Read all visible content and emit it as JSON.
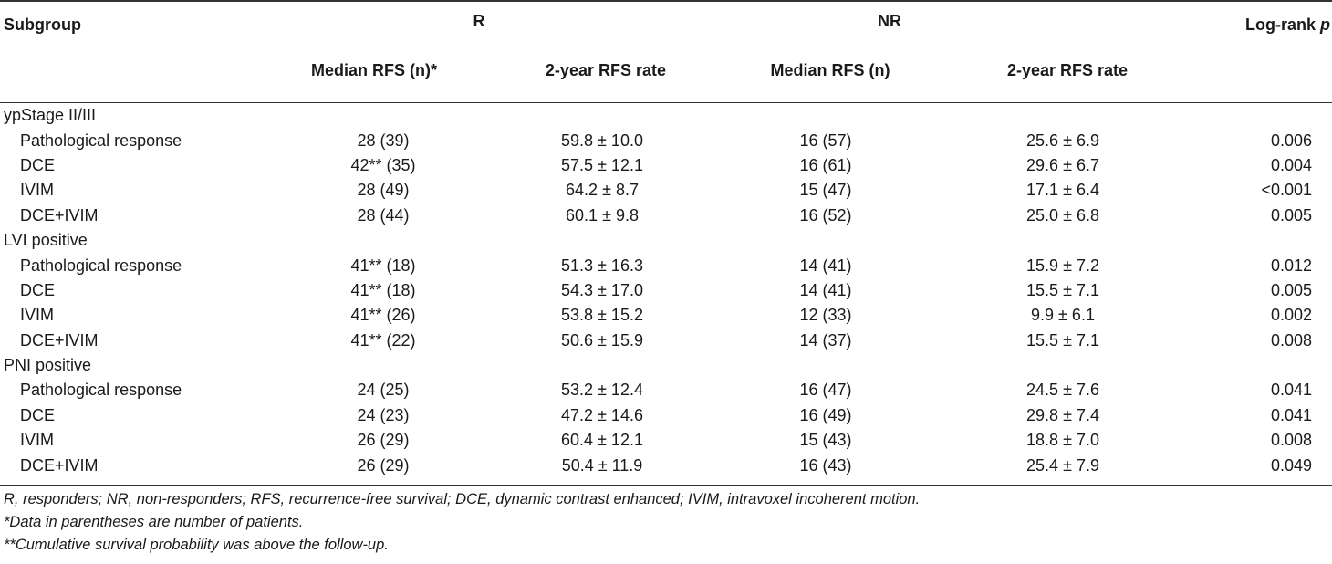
{
  "header": {
    "subgroup": "Subgroup",
    "r": "R",
    "nr": "NR",
    "logrank": "Log-rank ",
    "logrank_p": "p",
    "r_median": "Median RFS (n)*",
    "r_rate": "2-year RFS rate",
    "nr_median": "Median RFS (n)",
    "nr_rate": "2-year RFS rate"
  },
  "sections": [
    {
      "title": "ypStage II/III",
      "rows": [
        {
          "label": "Pathological response",
          "r_median": "28 (39)",
          "r_rate": "59.8 ± 10.0",
          "nr_median": "16 (57)",
          "nr_rate": "25.6 ± 6.9",
          "p": "0.006"
        },
        {
          "label": "DCE",
          "r_median": "42** (35)",
          "r_rate": "57.5 ± 12.1",
          "nr_median": "16 (61)",
          "nr_rate": "29.6 ± 6.7",
          "p": "0.004"
        },
        {
          "label": "IVIM",
          "r_median": "28 (49)",
          "r_rate": "64.2 ± 8.7",
          "nr_median": "15 (47)",
          "nr_rate": "17.1 ± 6.4",
          "p": "<0.001"
        },
        {
          "label": "DCE+IVIM",
          "r_median": "28 (44)",
          "r_rate": "60.1 ± 9.8",
          "nr_median": "16 (52)",
          "nr_rate": "25.0 ± 6.8",
          "p": "0.005"
        }
      ]
    },
    {
      "title": "LVI positive",
      "rows": [
        {
          "label": "Pathological response",
          "r_median": "41** (18)",
          "r_rate": "51.3 ± 16.3",
          "nr_median": "14 (41)",
          "nr_rate": "15.9 ± 7.2",
          "p": "0.012"
        },
        {
          "label": "DCE",
          "r_median": "41** (18)",
          "r_rate": "54.3 ± 17.0",
          "nr_median": "14 (41)",
          "nr_rate": "15.5 ± 7.1",
          "p": "0.005"
        },
        {
          "label": "IVIM",
          "r_median": "41** (26)",
          "r_rate": "53.8 ± 15.2",
          "nr_median": "12 (33)",
          "nr_rate": "9.9 ± 6.1",
          "p": "0.002"
        },
        {
          "label": "DCE+IVIM",
          "r_median": "41** (22)",
          "r_rate": "50.6 ± 15.9",
          "nr_median": "14 (37)",
          "nr_rate": "15.5 ± 7.1",
          "p": "0.008"
        }
      ]
    },
    {
      "title": "PNI positive",
      "rows": [
        {
          "label": "Pathological response",
          "r_median": "24 (25)",
          "r_rate": "53.2 ± 12.4",
          "nr_median": "16 (47)",
          "nr_rate": "24.5 ± 7.6",
          "p": "0.041"
        },
        {
          "label": "DCE",
          "r_median": "24 (23)",
          "r_rate": "47.2 ± 14.6",
          "nr_median": "16 (49)",
          "nr_rate": "29.8 ± 7.4",
          "p": "0.041"
        },
        {
          "label": "IVIM",
          "r_median": "26 (29)",
          "r_rate": "60.4 ± 12.1",
          "nr_median": "15 (43)",
          "nr_rate": "18.8 ± 7.0",
          "p": "0.008"
        },
        {
          "label": "DCE+IVIM",
          "r_median": "26 (29)",
          "r_rate": "50.4 ± 11.9",
          "nr_median": "16 (43)",
          "nr_rate": "25.4 ± 7.9",
          "p": "0.049"
        }
      ]
    }
  ],
  "notes": [
    "R, responders; NR, non-responders; RFS, recurrence-free survival; DCE, dynamic contrast enhanced; IVIM, intravoxel incoherent motion.",
    "*Data in parentheses are number of patients.",
    "**Cumulative survival probability was above the follow-up."
  ]
}
